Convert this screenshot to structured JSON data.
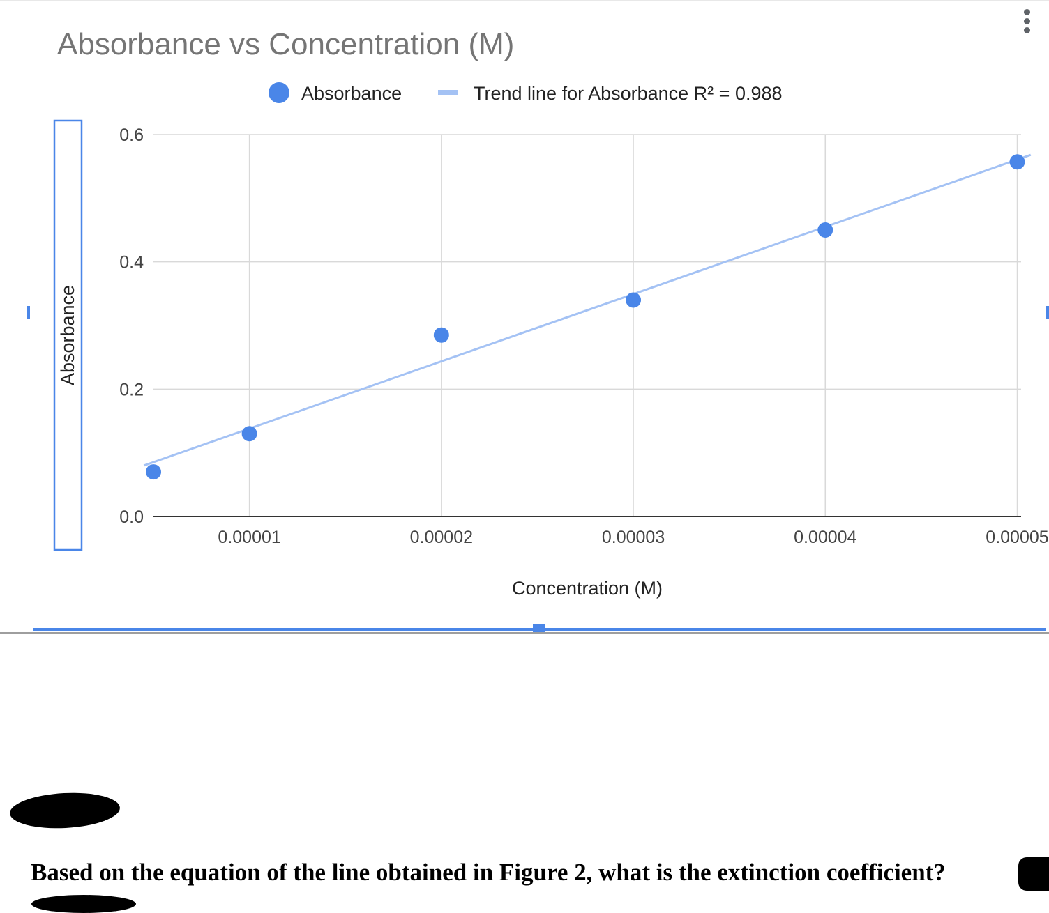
{
  "chart_data": {
    "type": "scatter",
    "title": "Absorbance vs Concentration (M)",
    "xlabel": "Concentration (M)",
    "ylabel": "Absorbance",
    "xlim": [
      5e-06,
      5.02e-05
    ],
    "ylim": [
      0.0,
      0.6
    ],
    "x_ticks": [
      "0.00001",
      "0.00002",
      "0.00003",
      "0.00004",
      "0.00005"
    ],
    "x_tick_values": [
      1e-05,
      2e-05,
      3e-05,
      4e-05,
      5e-05
    ],
    "y_ticks": [
      "0.0",
      "0.2",
      "0.4",
      "0.6"
    ],
    "y_tick_values": [
      0.0,
      0.2,
      0.4,
      0.6
    ],
    "grid": true,
    "legend_position": "top",
    "series": [
      {
        "name": "Absorbance",
        "color": "#4a86e8",
        "x": [
          5e-06,
          1e-05,
          2e-05,
          3e-05,
          4e-05,
          5e-05
        ],
        "y": [
          0.07,
          0.13,
          0.285,
          0.34,
          0.45,
          0.557
        ]
      }
    ],
    "trendline": {
      "name": "Trend line for Absorbance R² = 0.988",
      "color": "#a4c2f4",
      "r_squared": 0.988,
      "x": [
        4.5e-06,
        5.07e-05
      ],
      "y": [
        0.08,
        0.568
      ]
    }
  },
  "question": {
    "text": "Based on the equation of the line obtained in Figure 2, what is the extinction coefficient?"
  }
}
